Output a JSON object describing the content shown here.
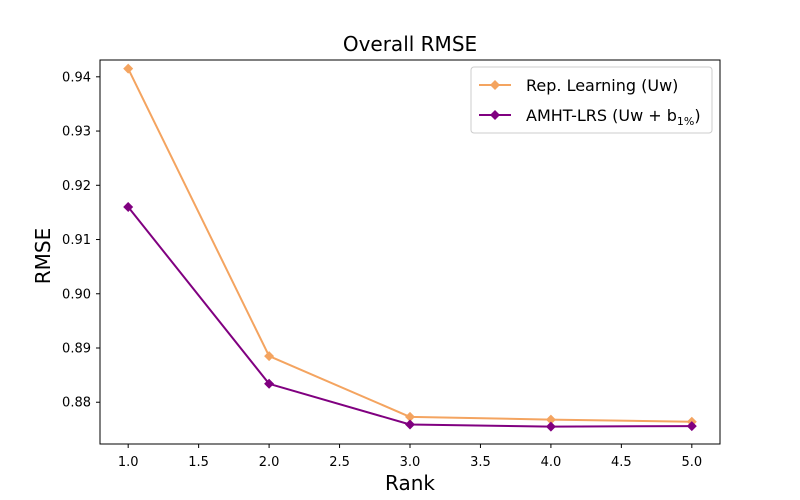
{
  "chart_data": {
    "type": "line",
    "title": "Overall RMSE",
    "xlabel": "Rank",
    "ylabel": "RMSE",
    "xlim": [
      0.8,
      5.2
    ],
    "ylim": [
      0.8723,
      0.9431
    ],
    "xticks": [
      1.0,
      1.5,
      2.0,
      2.5,
      3.0,
      3.5,
      4.0,
      4.5,
      5.0
    ],
    "xtick_labels": [
      "1.0",
      "1.5",
      "2.0",
      "2.5",
      "3.0",
      "3.5",
      "4.0",
      "4.5",
      "5.0"
    ],
    "yticks": [
      0.88,
      0.89,
      0.9,
      0.91,
      0.92,
      0.93,
      0.94
    ],
    "ytick_labels": [
      "0.88",
      "0.89",
      "0.90",
      "0.91",
      "0.92",
      "0.93",
      "0.94"
    ],
    "grid": false,
    "legend_position": "top-right",
    "x": [
      1,
      2,
      3,
      4,
      5
    ],
    "series": [
      {
        "name": "Rep. Learning (Uw)",
        "color": "#F4A460",
        "marker": "diamond",
        "values": [
          0.9415,
          0.8885,
          0.8773,
          0.8768,
          0.8764
        ]
      },
      {
        "name": "AMHT-LRS (Uw + b1%)",
        "color": "#800080",
        "marker": "diamond",
        "values": [
          0.916,
          0.8834,
          0.8759,
          0.8755,
          0.8756
        ]
      }
    ],
    "legend": {
      "series0": "Rep. Learning (Uw)",
      "series1_main": "AMHT-LRS (Uw + b",
      "series1_sub": "1%",
      "series1_close": ")"
    }
  }
}
